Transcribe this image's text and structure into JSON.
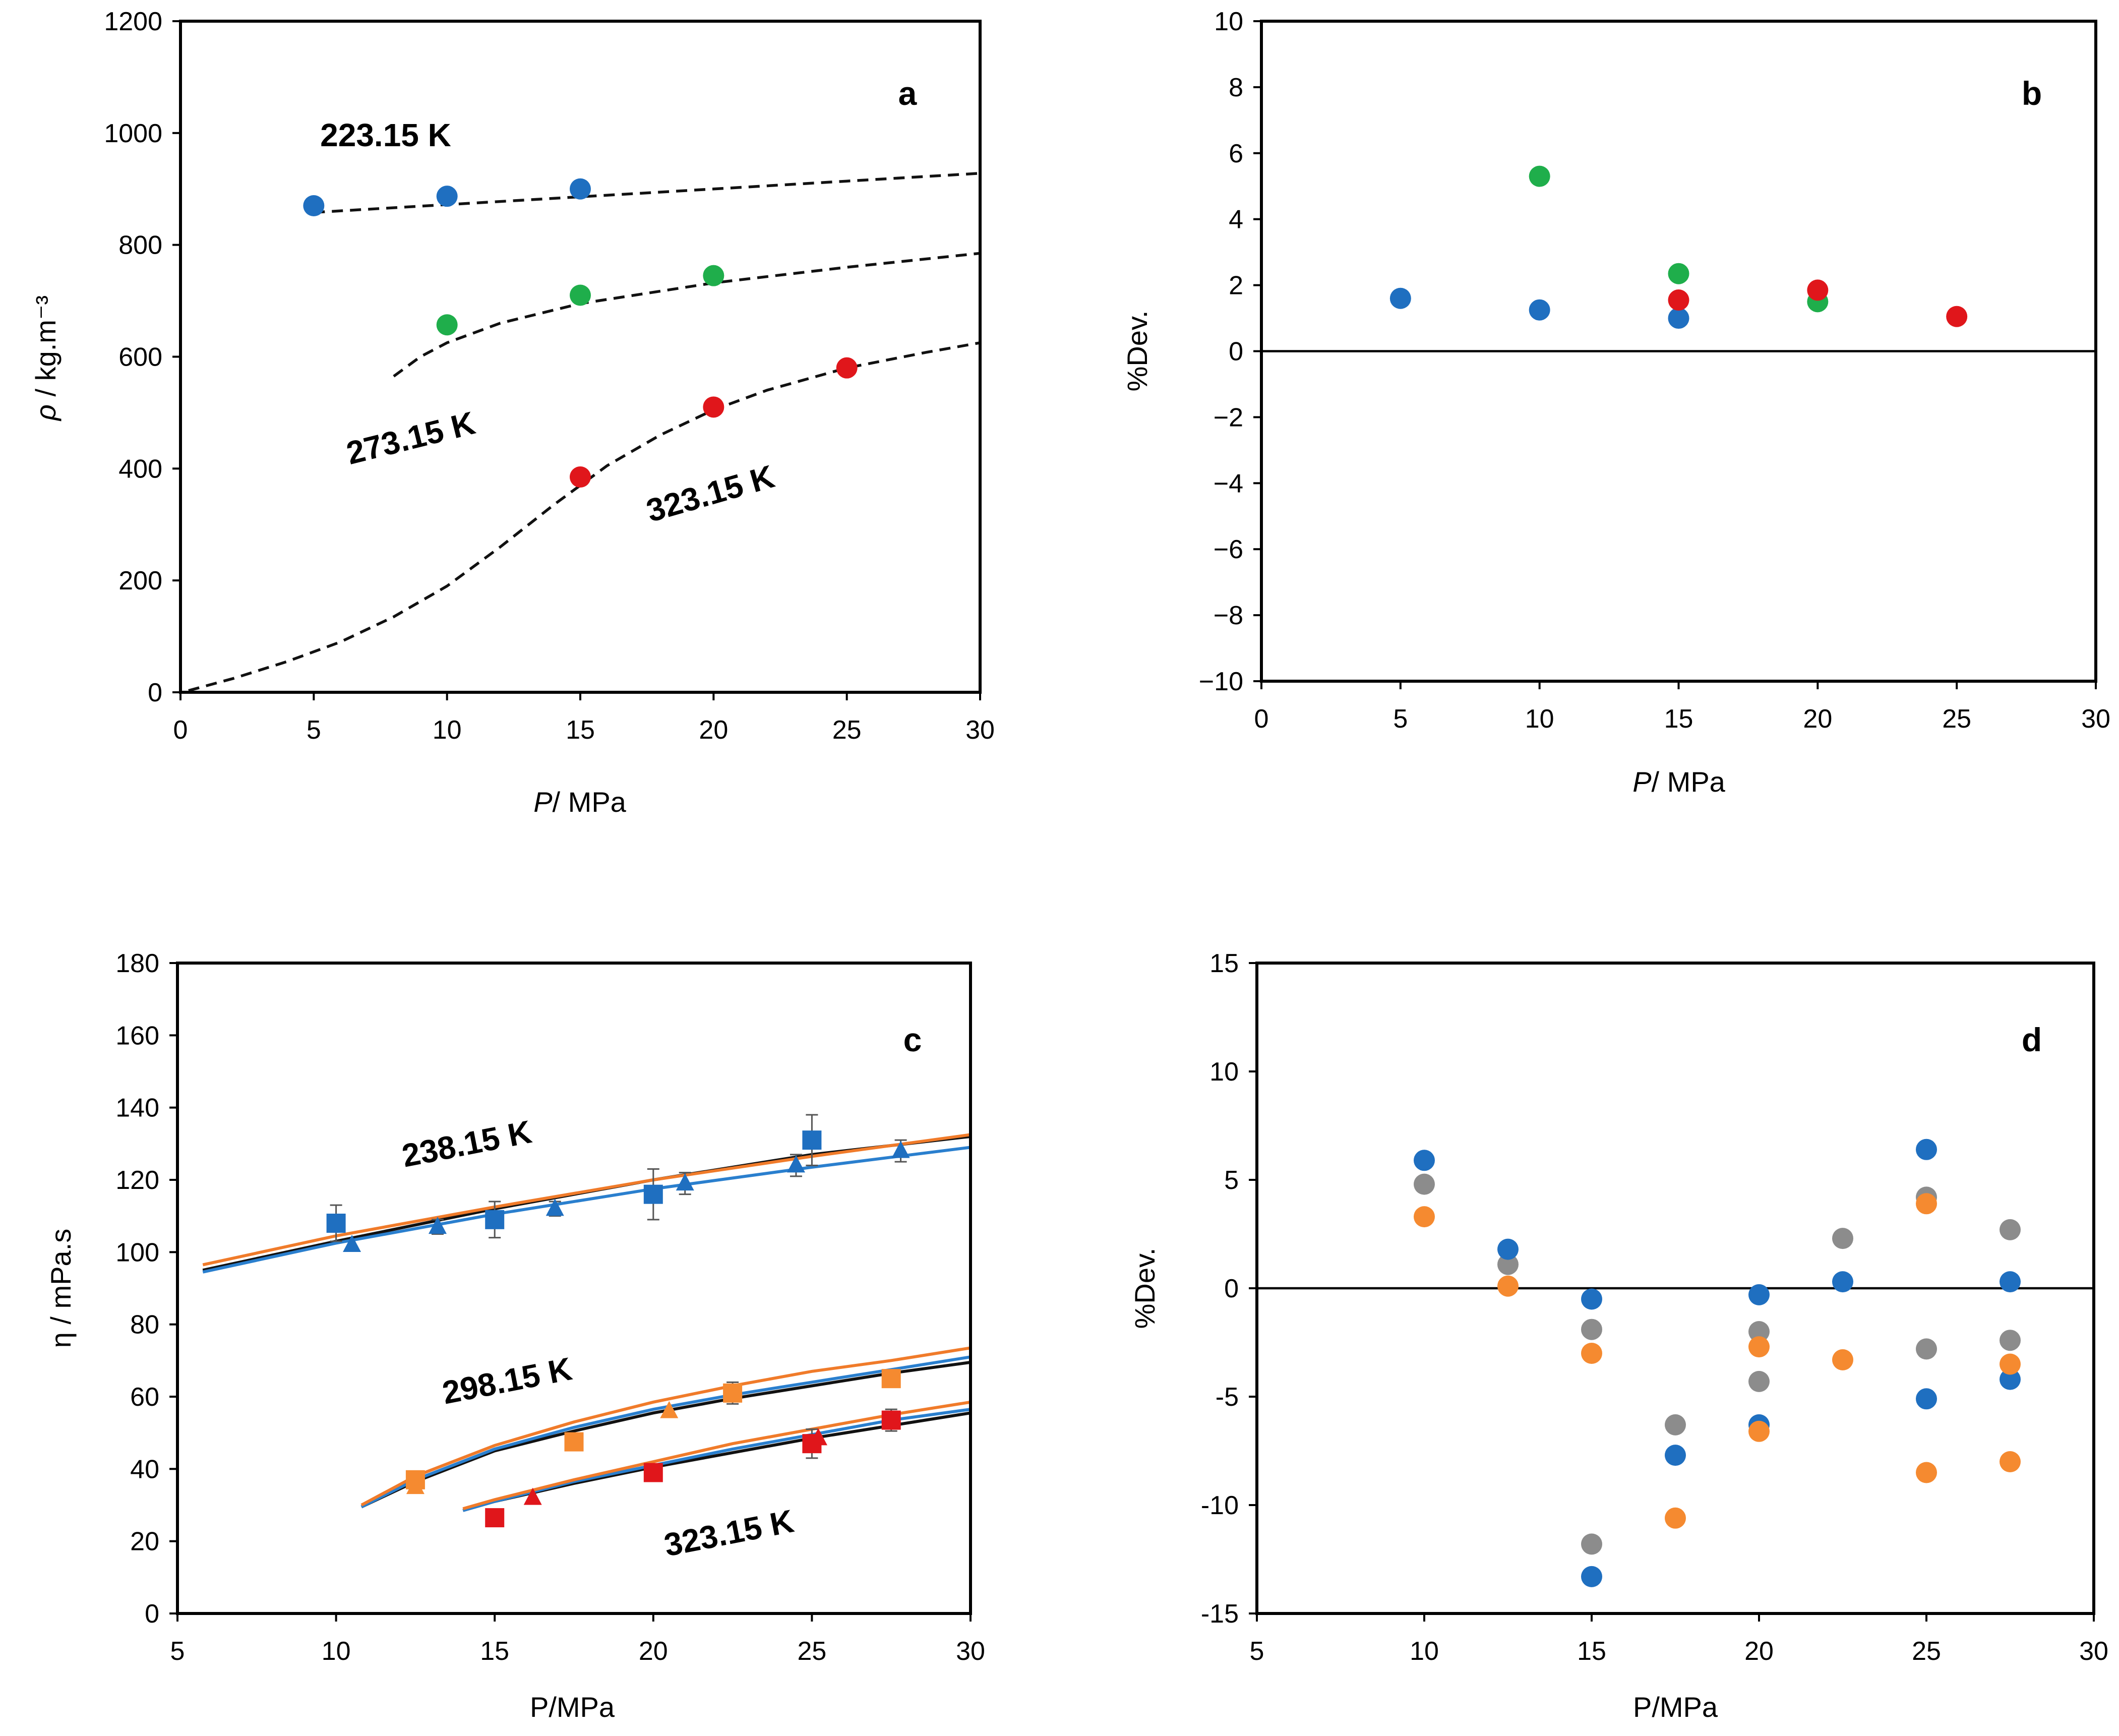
{
  "colors": {
    "blue": "#1f6fc0",
    "green": "#1fae4b",
    "red": "#e0161b",
    "orange": "#f58a30",
    "gray": "#8c8c8c",
    "black": "#111111",
    "model_blue": "#2a7fce",
    "model_orange": "#f07b2a"
  },
  "chart_data": [
    {
      "id": "a",
      "type": "scatter",
      "panel_label": "a",
      "xlabel_italic": "P",
      "xlabel_rest": "/ MPa",
      "ylabel_italic": "ρ",
      "ylabel_rest": " / kg.m⁻³",
      "xlim": [
        0,
        30
      ],
      "ylim": [
        0,
        1200
      ],
      "xticks": [
        0,
        5,
        10,
        15,
        20,
        25,
        30
      ],
      "yticks": [
        0,
        200,
        400,
        600,
        800,
        1000,
        1200
      ],
      "series": [
        {
          "name": "223.15 K",
          "color": "blue",
          "x": [
            5,
            10,
            15
          ],
          "y": [
            870,
            887,
            900
          ]
        },
        {
          "name": "273.15 K",
          "color": "green",
          "x": [
            10,
            15,
            20
          ],
          "y": [
            657,
            710,
            745
          ]
        },
        {
          "name": "323.15 K",
          "color": "red",
          "x": [
            15,
            20,
            25
          ],
          "y": [
            385,
            510,
            580
          ]
        }
      ],
      "model_curves": [
        {
          "name": "223.15 K",
          "x": [
            5,
            10,
            15,
            20,
            25,
            30
          ],
          "y": [
            858,
            872,
            886,
            900,
            914,
            928
          ]
        },
        {
          "name": "273.15 K",
          "x": [
            8,
            9,
            10,
            12,
            15,
            20,
            25,
            30
          ],
          "y": [
            565,
            600,
            625,
            660,
            695,
            732,
            760,
            785
          ]
        },
        {
          "name": "323.15 K",
          "x": [
            0.3,
            2,
            4,
            6,
            8,
            10,
            12,
            14,
            16,
            18,
            20,
            22,
            25,
            28,
            30
          ],
          "y": [
            3,
            25,
            55,
            90,
            135,
            190,
            260,
            335,
            405,
            460,
            505,
            540,
            580,
            608,
            625
          ]
        }
      ],
      "annotations": [
        "223.15 K",
        "273.15 K",
        "323.15 K"
      ]
    },
    {
      "id": "b",
      "type": "scatter",
      "panel_label": "b",
      "xlabel_italic": "P",
      "xlabel_rest": "/ MPa",
      "ylabel": "%Dev.",
      "xlim": [
        0,
        30
      ],
      "ylim": [
        -10,
        10
      ],
      "xticks": [
        0,
        5,
        10,
        15,
        20,
        25,
        30
      ],
      "yticks": [
        10,
        8,
        6,
        4,
        2,
        0,
        -2,
        -4,
        -6,
        -8,
        -10
      ],
      "ytick_labels": [
        "10",
        "8",
        "6",
        "4",
        "2",
        "0",
        "−2",
        "−4",
        "−6",
        "−8",
        "−10"
      ],
      "zero_line": true,
      "series": [
        {
          "name": "223.15 K",
          "color": "blue",
          "x": [
            5,
            10,
            15
          ],
          "y": [
            1.6,
            1.25,
            1.0
          ]
        },
        {
          "name": "273.15 K",
          "color": "green",
          "x": [
            10,
            15,
            20
          ],
          "y": [
            5.3,
            2.35,
            1.5
          ]
        },
        {
          "name": "323.15 K",
          "color": "red",
          "x": [
            15,
            20,
            25
          ],
          "y": [
            1.55,
            1.85,
            1.05
          ]
        }
      ]
    },
    {
      "id": "c",
      "type": "scatter",
      "panel_label": "c",
      "xlabel": "P/MPa",
      "ylabel": "η / mPa.s",
      "xlim": [
        5,
        30
      ],
      "ylim": [
        0,
        180
      ],
      "xticks": [
        5,
        10,
        15,
        20,
        25,
        30
      ],
      "yticks": [
        0,
        20,
        40,
        60,
        80,
        100,
        120,
        140,
        160,
        180
      ],
      "series": [
        {
          "name": "238.15 K squares",
          "color": "blue",
          "marker": "square",
          "x": [
            10,
            15,
            20,
            25
          ],
          "y": [
            108,
            109,
            116,
            131
          ],
          "err": [
            5,
            5,
            7,
            7
          ]
        },
        {
          "name": "238.15 K triangles",
          "color": "blue",
          "marker": "triangle",
          "x": [
            10.5,
            13.2,
            16.9,
            21,
            24.5,
            27.8
          ],
          "y": [
            102,
            107,
            112,
            119,
            124,
            128
          ],
          "err": [
            0,
            2,
            2,
            3,
            3,
            3
          ]
        },
        {
          "name": "298.15 K squares",
          "color": "orange",
          "marker": "square",
          "x": [
            12.5,
            17.5,
            22.5,
            27.5
          ],
          "y": [
            37,
            47.5,
            61,
            65
          ],
          "err": [
            0,
            0,
            3,
            0
          ]
        },
        {
          "name": "298.15 K triangles",
          "color": "orange",
          "marker": "triangle",
          "x": [
            12.5,
            20.5
          ],
          "y": [
            35,
            56
          ],
          "err": [
            0,
            0
          ]
        },
        {
          "name": "323.15 K squares",
          "color": "red",
          "marker": "square",
          "x": [
            15,
            20,
            25,
            27.5
          ],
          "y": [
            26.5,
            39,
            47,
            53.5
          ],
          "err": [
            0,
            0,
            4,
            3
          ]
        },
        {
          "name": "323.15 K triangles",
          "color": "red",
          "marker": "triangle",
          "x": [
            16.2,
            25.2
          ],
          "y": [
            32,
            48.5
          ],
          "err": [
            0,
            0
          ]
        }
      ],
      "model_curves": [
        {
          "name": "238.15 K black",
          "color": "black",
          "x": [
            5.8,
            10,
            15,
            20,
            25,
            30
          ],
          "y": [
            95,
            103,
            112,
            120,
            127,
            132
          ]
        },
        {
          "name": "238.15 K blue",
          "color": "model_blue",
          "x": [
            5.8,
            10,
            15,
            20,
            25,
            30
          ],
          "y": [
            94.5,
            102.5,
            110.5,
            117.5,
            123.5,
            129
          ]
        },
        {
          "name": "238.15 K orange",
          "color": "model_orange",
          "x": [
            5.8,
            10,
            15,
            20,
            25,
            30
          ],
          "y": [
            96.5,
            104.5,
            112.5,
            120,
            126.5,
            132.5
          ]
        },
        {
          "name": "298.15 K black",
          "color": "black",
          "x": [
            10.8,
            12.5,
            15,
            17.5,
            20,
            22.5,
            25,
            27.5,
            30
          ],
          "y": [
            29.5,
            36.5,
            45,
            50.5,
            55.5,
            59.5,
            63,
            66.5,
            69.5
          ]
        },
        {
          "name": "298.15 K blue",
          "color": "model_blue",
          "x": [
            10.8,
            12.5,
            15,
            17.5,
            20,
            22.5,
            25,
            27.5,
            30
          ],
          "y": [
            29.5,
            37,
            45.5,
            51.5,
            56.5,
            60.5,
            64,
            67.5,
            71
          ]
        },
        {
          "name": "298.15 K orange",
          "color": "model_orange",
          "x": [
            10.8,
            12.5,
            15,
            17.5,
            20,
            22.5,
            25,
            27.5,
            30
          ],
          "y": [
            30,
            38,
            46.5,
            53,
            58.5,
            63,
            67,
            70,
            73.5
          ]
        },
        {
          "name": "323.15 K black",
          "color": "black",
          "x": [
            14,
            15,
            17.5,
            20,
            22.5,
            25,
            27.5,
            30
          ],
          "y": [
            28.5,
            31,
            36,
            40.5,
            44.5,
            48.5,
            52,
            55.5
          ]
        },
        {
          "name": "323.15 K blue",
          "color": "model_blue",
          "x": [
            14,
            15,
            17.5,
            20,
            22.5,
            25,
            27.5,
            30
          ],
          "y": [
            28.5,
            31,
            36.5,
            41,
            45.5,
            49.5,
            53.5,
            56.5
          ]
        },
        {
          "name": "323.15 K orange",
          "color": "model_orange",
          "x": [
            14,
            15,
            17.5,
            20,
            22.5,
            25,
            27.5,
            30
          ],
          "y": [
            29,
            31.5,
            37,
            42,
            47,
            51,
            55,
            58.5
          ]
        }
      ],
      "annotations": [
        "238.15 K",
        "298.15 K",
        "323.15 K"
      ]
    },
    {
      "id": "d",
      "type": "scatter",
      "panel_label": "d",
      "xlabel": "P/MPa",
      "ylabel": "%Dev.",
      "xlim": [
        5,
        30
      ],
      "ylim": [
        -15,
        15
      ],
      "xticks": [
        5,
        10,
        15,
        20,
        25,
        30
      ],
      "yticks": [
        15,
        10,
        5,
        0,
        -5,
        -10,
        -15
      ],
      "ytick_labels": [
        "15",
        "10",
        "5",
        "0",
        "-5",
        "-10",
        "-15"
      ],
      "zero_line": true,
      "series": [
        {
          "name": "gray",
          "color": "gray",
          "x": [
            10,
            12.5,
            15,
            15,
            17.5,
            20,
            20,
            22.5,
            25,
            25,
            27.5,
            27.5
          ],
          "y": [
            4.8,
            1.1,
            -1.9,
            -11.8,
            -6.3,
            -2.0,
            -4.3,
            2.3,
            4.2,
            -2.8,
            2.7,
            -2.4
          ]
        },
        {
          "name": "blue",
          "color": "blue",
          "x": [
            10,
            12.5,
            15,
            15,
            17.5,
            20,
            20,
            22.5,
            25,
            25,
            27.5,
            27.5
          ],
          "y": [
            5.9,
            1.8,
            -0.5,
            -13.3,
            -7.7,
            -0.3,
            -6.3,
            0.3,
            6.4,
            -5.1,
            0.3,
            -4.2
          ]
        },
        {
          "name": "orange",
          "color": "orange",
          "x": [
            10,
            12.5,
            15,
            17.5,
            20,
            20,
            22.5,
            25,
            25,
            27.5,
            27.5
          ],
          "y": [
            3.3,
            0.1,
            -3.0,
            -10.6,
            -2.7,
            -6.6,
            -3.3,
            3.9,
            -8.5,
            -3.5,
            -8.0
          ]
        }
      ]
    }
  ]
}
